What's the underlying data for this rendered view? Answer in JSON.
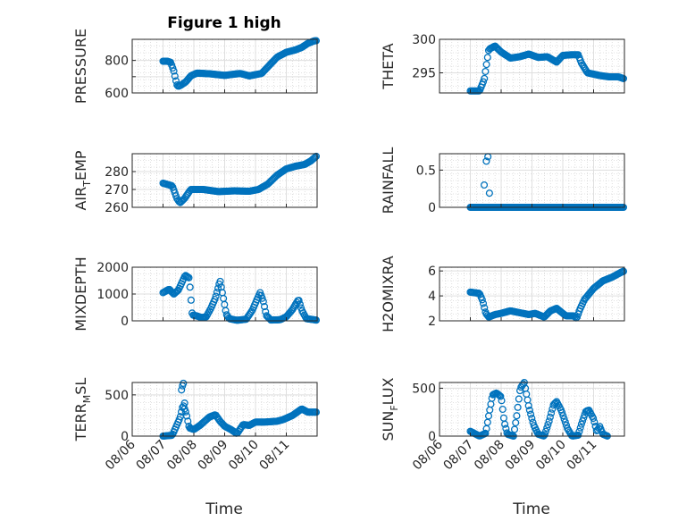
{
  "figure": {
    "title": "Figure 1 high"
  },
  "colors": {
    "marker": "#0072BD",
    "axis": "#262626",
    "grid": "#dfdfdf",
    "minor_grid": "#c8c8c8"
  },
  "chart_data": [
    {
      "type": "scatter",
      "id": "pressure",
      "title": "Figure 1 high",
      "ylabel": "PRESSURE",
      "ylabel_parts": [
        [
          "PRESSURE",
          ""
        ]
      ],
      "ylim": [
        600,
        930
      ],
      "yticks": [
        600,
        700,
        800
      ],
      "yticklabels": [
        "600",
        "",
        "800"
      ],
      "keys": [
        [
          1.0,
          795
        ],
        [
          1.15,
          795
        ],
        [
          1.25,
          788
        ],
        [
          1.35,
          735
        ],
        [
          1.4,
          690
        ],
        [
          1.45,
          650
        ],
        [
          1.5,
          640
        ],
        [
          1.6,
          650
        ],
        [
          1.75,
          670
        ],
        [
          1.9,
          705
        ],
        [
          2.1,
          722
        ],
        [
          2.5,
          718
        ],
        [
          3.0,
          708
        ],
        [
          3.5,
          720
        ],
        [
          3.8,
          705
        ],
        [
          4.2,
          720
        ],
        [
          4.4,
          760
        ],
        [
          4.7,
          820
        ],
        [
          5.0,
          850
        ],
        [
          5.3,
          865
        ],
        [
          5.5,
          880
        ],
        [
          5.7,
          905
        ],
        [
          5.9,
          920
        ],
        [
          6.0,
          922
        ]
      ]
    },
    {
      "type": "scatter",
      "id": "theta",
      "ylabel": "THETA",
      "ylabel_parts": [
        [
          "THETA",
          ""
        ]
      ],
      "ylim": [
        292,
        300
      ],
      "yticks": [
        295,
        300
      ],
      "yticklabels": [
        "295",
        "300"
      ],
      "keys": [
        [
          1.0,
          292.3
        ],
        [
          1.3,
          292.3
        ],
        [
          1.45,
          294
        ],
        [
          1.6,
          298.5
        ],
        [
          1.8,
          299
        ],
        [
          2.0,
          298.1
        ],
        [
          2.3,
          297.2
        ],
        [
          2.6,
          297.4
        ],
        [
          2.9,
          297.8
        ],
        [
          3.2,
          297.3
        ],
        [
          3.5,
          297.4
        ],
        [
          3.8,
          296.6
        ],
        [
          4.0,
          297.6
        ],
        [
          4.3,
          297.7
        ],
        [
          4.5,
          297.7
        ],
        [
          4.6,
          296.5
        ],
        [
          4.8,
          295
        ],
        [
          5.2,
          294.6
        ],
        [
          5.5,
          294.4
        ],
        [
          5.8,
          294.4
        ],
        [
          6.0,
          294.1
        ]
      ]
    },
    {
      "type": "scatter",
      "id": "air_temp",
      "ylabel": "AIR_TEMP",
      "ylabel_parts": [
        [
          "AIR",
          ""
        ],
        [
          "T",
          "sub"
        ],
        [
          "EMP",
          ""
        ]
      ],
      "ylim": [
        260,
        290
      ],
      "yticks": [
        260,
        270,
        280
      ],
      "yticklabels": [
        "260",
        "270",
        "280"
      ],
      "keys": [
        [
          1.0,
          273.5
        ],
        [
          1.3,
          272
        ],
        [
          1.45,
          265
        ],
        [
          1.55,
          262.5
        ],
        [
          1.7,
          265
        ],
        [
          1.9,
          270
        ],
        [
          2.3,
          270
        ],
        [
          2.8,
          268.8
        ],
        [
          3.3,
          269.2
        ],
        [
          3.8,
          269
        ],
        [
          4.1,
          270
        ],
        [
          4.4,
          273
        ],
        [
          4.7,
          278
        ],
        [
          5.0,
          281.5
        ],
        [
          5.3,
          283
        ],
        [
          5.6,
          284
        ],
        [
          5.8,
          286
        ],
        [
          6.0,
          289
        ]
      ]
    },
    {
      "type": "scatter",
      "id": "rainfall",
      "ylabel": "RAINFALL",
      "ylabel_parts": [
        [
          "RAINFALL",
          ""
        ]
      ],
      "ylim": [
        0,
        0.72
      ],
      "yticks": [
        0,
        0.5
      ],
      "yticklabels": [
        "0",
        "0.5"
      ],
      "keys": [
        [
          1.0,
          0
        ],
        [
          6.0,
          0
        ]
      ],
      "extra": [
        [
          1.45,
          0.3
        ],
        [
          1.52,
          0.62
        ],
        [
          1.57,
          0.68
        ],
        [
          1.62,
          0.19
        ],
        [
          1.37,
          0
        ],
        [
          1.4,
          0
        ]
      ]
    },
    {
      "type": "scatter",
      "id": "mixdepth",
      "ylabel": "MIXDEPTH",
      "ylabel_parts": [
        [
          "MIXDEPTH",
          ""
        ]
      ],
      "ylim": [
        0,
        2000
      ],
      "yticks": [
        0,
        1000,
        2000
      ],
      "yticklabels": [
        "0",
        "1000",
        "2000"
      ],
      "keys": [
        [
          1.0,
          1050
        ],
        [
          1.2,
          1180
        ],
        [
          1.35,
          1000
        ],
        [
          1.5,
          1150
        ],
        [
          1.6,
          1400
        ],
        [
          1.72,
          1700
        ],
        [
          1.85,
          1600
        ],
        [
          1.95,
          220
        ],
        [
          2.1,
          180
        ],
        [
          2.25,
          120
        ],
        [
          2.4,
          150
        ],
        [
          2.55,
          460
        ],
        [
          2.7,
          850
        ],
        [
          2.85,
          1500
        ],
        [
          2.95,
          900
        ],
        [
          3.05,
          250
        ],
        [
          3.15,
          80
        ],
        [
          3.4,
          20
        ],
        [
          3.7,
          60
        ],
        [
          3.9,
          400
        ],
        [
          4.05,
          800
        ],
        [
          4.15,
          1050
        ],
        [
          4.25,
          750
        ],
        [
          4.35,
          200
        ],
        [
          4.5,
          30
        ],
        [
          4.8,
          40
        ],
        [
          5.0,
          150
        ],
        [
          5.2,
          420
        ],
        [
          5.4,
          800
        ],
        [
          5.5,
          400
        ],
        [
          5.65,
          80
        ],
        [
          5.9,
          40
        ],
        [
          6.0,
          20
        ]
      ]
    },
    {
      "type": "scatter",
      "id": "h2omixra",
      "ylabel": "H2OMIXRA",
      "ylabel_parts": [
        [
          "H2OMIXRA",
          ""
        ]
      ],
      "ylim": [
        2,
        6.3
      ],
      "yticks": [
        2,
        4,
        6
      ],
      "yticklabels": [
        "2",
        "4",
        "6"
      ],
      "keys": [
        [
          1.0,
          4.3
        ],
        [
          1.3,
          4.2
        ],
        [
          1.4,
          3.6
        ],
        [
          1.5,
          2.6
        ],
        [
          1.6,
          2.3
        ],
        [
          1.8,
          2.5
        ],
        [
          2.0,
          2.6
        ],
        [
          2.3,
          2.8
        ],
        [
          2.7,
          2.6
        ],
        [
          2.9,
          2.5
        ],
        [
          3.1,
          2.6
        ],
        [
          3.4,
          2.3
        ],
        [
          3.6,
          2.8
        ],
        [
          3.8,
          3.0
        ],
        [
          4.1,
          2.4
        ],
        [
          4.35,
          2.4
        ],
        [
          4.45,
          2.2
        ],
        [
          4.55,
          2.9
        ],
        [
          4.7,
          3.7
        ],
        [
          5.0,
          4.6
        ],
        [
          5.3,
          5.2
        ],
        [
          5.6,
          5.5
        ],
        [
          5.9,
          5.9
        ],
        [
          6.0,
          6.0
        ]
      ]
    },
    {
      "type": "scatter",
      "id": "terr_msl",
      "ylabel": "TERR_MSL",
      "ylabel_parts": [
        [
          "TERR",
          ""
        ],
        [
          "M",
          "sub"
        ],
        [
          "SL",
          ""
        ]
      ],
      "ylim": [
        0,
        650
      ],
      "yticks": [
        0,
        500
      ],
      "yticklabels": [
        "0",
        "500"
      ],
      "keys": [
        [
          1.0,
          0
        ],
        [
          1.3,
          10
        ],
        [
          1.55,
          220
        ],
        [
          1.65,
          380
        ],
        [
          1.75,
          280
        ],
        [
          1.85,
          100
        ],
        [
          2.0,
          80
        ],
        [
          2.2,
          130
        ],
        [
          2.5,
          230
        ],
        [
          2.7,
          260
        ],
        [
          2.85,
          180
        ],
        [
          3.0,
          120
        ],
        [
          3.2,
          80
        ],
        [
          3.4,
          30
        ],
        [
          3.6,
          140
        ],
        [
          3.8,
          130
        ],
        [
          4.0,
          170
        ],
        [
          4.3,
          170
        ],
        [
          4.7,
          180
        ],
        [
          4.9,
          200
        ],
        [
          5.2,
          250
        ],
        [
          5.5,
          330
        ],
        [
          5.7,
          290
        ],
        [
          6.0,
          290
        ]
      ],
      "extra": [
        [
          1.6,
          560
        ],
        [
          1.63,
          610
        ],
        [
          1.66,
          640
        ],
        [
          1.7,
          400
        ]
      ]
    },
    {
      "type": "scatter",
      "id": "sun_flux",
      "ylabel": "SUN_FLUX",
      "ylabel_parts": [
        [
          "SUN",
          ""
        ],
        [
          "F",
          "sub"
        ],
        [
          "LUX",
          ""
        ]
      ],
      "ylim": [
        0,
        560
      ],
      "yticks": [
        0,
        500
      ],
      "yticklabels": [
        "0",
        "500"
      ],
      "keys": [
        [
          1.0,
          50
        ],
        [
          1.3,
          0
        ],
        [
          1.5,
          30
        ],
        [
          1.6,
          220
        ],
        [
          1.72,
          430
        ],
        [
          1.85,
          450
        ],
        [
          2.0,
          410
        ],
        [
          2.1,
          150
        ],
        [
          2.2,
          20
        ],
        [
          2.4,
          0
        ],
        [
          2.5,
          200
        ],
        [
          2.62,
          500
        ],
        [
          2.75,
          560
        ],
        [
          2.9,
          300
        ],
        [
          3.05,
          120
        ],
        [
          3.2,
          20
        ],
        [
          3.4,
          0
        ],
        [
          3.55,
          150
        ],
        [
          3.7,
          330
        ],
        [
          3.8,
          360
        ],
        [
          3.95,
          270
        ],
        [
          4.15,
          80
        ],
        [
          4.3,
          0
        ],
        [
          4.5,
          10
        ],
        [
          4.6,
          120
        ],
        [
          4.75,
          260
        ],
        [
          4.85,
          270
        ],
        [
          5.0,
          180
        ],
        [
          5.1,
          50
        ],
        [
          5.2,
          100
        ],
        [
          5.3,
          20
        ],
        [
          5.45,
          0
        ]
      ]
    }
  ],
  "x_axis": {
    "label": "Time",
    "lim": [
      0,
      6
    ],
    "ticks": [
      0,
      1,
      2,
      3,
      4,
      5
    ],
    "ticklabels": [
      "08/06",
      "08/07",
      "08/08",
      "08/09",
      "08/10",
      "08/11"
    ]
  }
}
